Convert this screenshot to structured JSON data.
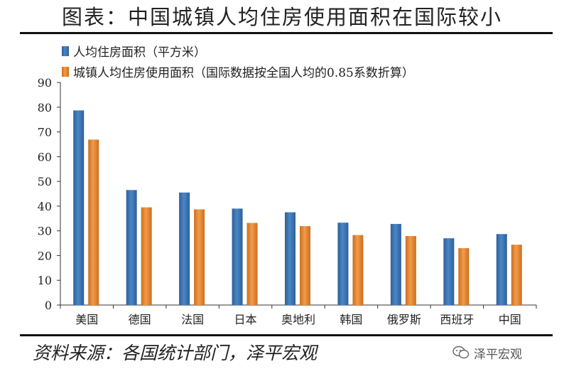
{
  "header": {
    "title": "图表：中国城镇人均住房使用面积在国际较小"
  },
  "footer": {
    "source": "资料来源：各国统计部门，泽平宏观",
    "watermark": "泽平宏观"
  },
  "colors": {
    "series1": "#4A86C6",
    "series2": "#F59A4A",
    "series1_dark": "#2F5F98",
    "series2_dark": "#C8701F"
  },
  "chart_data": {
    "type": "bar",
    "categories": [
      "美国",
      "德国",
      "法国",
      "日本",
      "奥地利",
      "韩国",
      "俄罗斯",
      "西班牙",
      "中国"
    ],
    "series": [
      {
        "name": "人均住房面积（平方米）",
        "values": [
          78.7,
          46.5,
          45.5,
          39,
          37.5,
          33.3,
          32.8,
          27,
          28.7
        ]
      },
      {
        "name": "城镇人均住房使用面积（国际数据按全国人均的0.85系数折算）",
        "values": [
          66.9,
          39.5,
          38.7,
          33.2,
          31.9,
          28.3,
          27.9,
          23,
          24.4
        ]
      }
    ],
    "ylim": [
      0,
      90
    ],
    "yticks": [
      "0",
      "10",
      "20",
      "30",
      "40",
      "50",
      "60",
      "70",
      "80",
      "90"
    ],
    "xlabel": "",
    "ylabel": "",
    "grid": false,
    "legend": "top-left"
  }
}
